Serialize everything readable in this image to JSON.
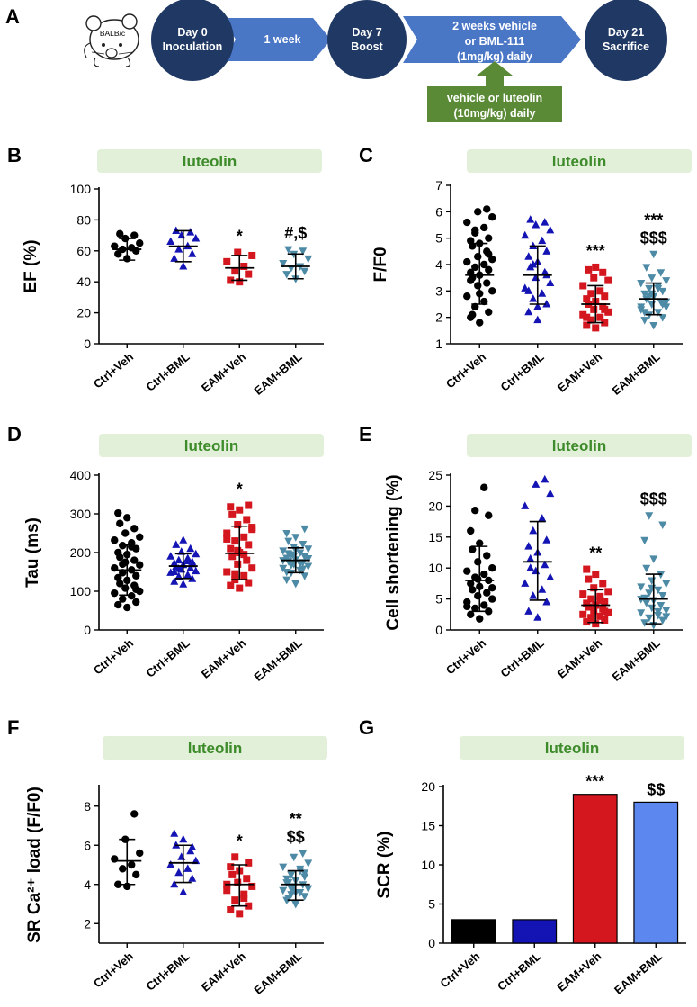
{
  "timeline": {
    "panel_letter": "A",
    "mouse_label": "BALB/c",
    "day0_line1": "Day 0",
    "day0_line2": "Inoculation",
    "arrow1": "1 week",
    "day7_line1": "Day 7",
    "day7_line2": "Boost",
    "arrow2_line1": "2 weeks vehicle",
    "arrow2_line2": "or BML-111",
    "arrow2_line3": "(1mg/kg) daily",
    "day21_line1": "Day 21",
    "day21_line2": "Sacrifice",
    "luteolin_line1": "vehicle or luteolin",
    "luteolin_line2": "(10mg/kg) daily",
    "colors": {
      "circle": "#1f3864",
      "arrow": "#4a76c6",
      "green_box": "#5a8a35"
    }
  },
  "tag_label": "luteolin",
  "chart_data": [
    {
      "panel": "B",
      "type": "scatter",
      "ylabel": "EF (%)",
      "ylim": [
        0,
        100
      ],
      "yticks": [
        0,
        20,
        40,
        60,
        80,
        100
      ],
      "categories": [
        "Ctrl+Veh",
        "Ctrl+BML",
        "EAM+Veh",
        "EAM+BML"
      ],
      "means": [
        61,
        63,
        49,
        50
      ],
      "sd_upper": [
        68,
        73,
        57,
        58
      ],
      "sd_lower": [
        54,
        53,
        41,
        42
      ],
      "significance": [
        "",
        "",
        "*",
        "#,$"
      ],
      "points": [
        [
          55,
          58,
          60,
          61,
          62,
          63,
          65,
          68,
          70,
          71
        ],
        [
          50,
          55,
          58,
          61,
          63,
          66,
          68,
          70,
          72,
          73
        ],
        [
          40,
          41,
          45,
          47,
          50,
          53,
          57,
          59
        ],
        [
          42,
          45,
          47,
          49,
          50,
          52,
          55,
          58,
          60,
          61
        ]
      ]
    },
    {
      "panel": "C",
      "type": "scatter",
      "ylabel": "F/F0",
      "ylim": [
        1,
        7
      ],
      "yticks": [
        1,
        2,
        3,
        4,
        5,
        6,
        7
      ],
      "categories": [
        "Ctrl+Veh",
        "Ctrl+BML",
        "EAM+Veh",
        "EAM+BML"
      ],
      "means": [
        3.6,
        3.6,
        2.5,
        2.7
      ],
      "sd_upper": [
        4.8,
        4.7,
        3.2,
        3.3
      ],
      "sd_lower": [
        2.5,
        2.5,
        1.8,
        2.1
      ],
      "significance": [
        "",
        "",
        "***",
        "***|$$$"
      ],
      "points": [
        [
          1.8,
          2.0,
          2.2,
          2.4,
          2.6,
          2.8,
          3.0,
          3.2,
          3.3,
          3.5,
          3.6,
          3.7,
          3.8,
          3.9,
          4.0,
          4.1,
          4.2,
          4.3,
          4.5,
          4.7,
          4.8,
          4.9,
          5.0,
          5.2,
          5.4,
          5.6,
          5.8,
          6.0,
          6.1,
          2.1,
          2.9,
          3.4,
          4.4,
          5.3
        ],
        [
          1.9,
          2.2,
          2.5,
          2.7,
          2.9,
          3.1,
          3.3,
          3.5,
          3.7,
          3.9,
          4.1,
          4.3,
          4.5,
          4.7,
          4.9,
          5.1,
          5.3,
          5.5,
          5.6,
          5.7,
          2.4,
          3.0,
          3.6,
          4.0
        ],
        [
          1.6,
          1.7,
          1.8,
          1.9,
          2.0,
          2.1,
          2.2,
          2.3,
          2.4,
          2.5,
          2.6,
          2.7,
          2.8,
          2.9,
          3.0,
          3.2,
          3.4,
          3.5,
          3.7,
          3.8,
          3.9,
          2.0,
          2.3
        ],
        [
          1.7,
          1.9,
          2.0,
          2.1,
          2.2,
          2.3,
          2.4,
          2.5,
          2.6,
          2.7,
          2.8,
          2.9,
          3.0,
          3.1,
          3.2,
          3.3,
          3.4,
          3.5,
          3.7,
          3.9,
          4.4,
          2.2,
          2.5,
          2.8,
          3.1,
          2.4,
          2.6,
          2.9
        ]
      ]
    },
    {
      "panel": "D",
      "type": "scatter",
      "ylabel": "Tau (ms)",
      "ylim": [
        0,
        400
      ],
      "yticks": [
        0,
        100,
        200,
        300,
        400
      ],
      "categories": [
        "Ctrl+Veh",
        "Ctrl+BML",
        "EAM+Veh",
        "EAM+BML"
      ],
      "means": [
        155,
        165,
        198,
        180
      ],
      "sd_upper": [
        220,
        197,
        268,
        212
      ],
      "sd_lower": [
        90,
        133,
        130,
        148
      ],
      "significance": [
        "",
        "",
        "*",
        ""
      ],
      "points": [
        [
          58,
          65,
          72,
          80,
          88,
          95,
          100,
          108,
          115,
          120,
          128,
          135,
          140,
          148,
          155,
          160,
          168,
          175,
          180,
          188,
          195,
          200,
          210,
          218,
          225,
          232,
          240,
          250,
          262,
          275,
          290,
          302,
          105,
          170,
          215
        ],
        [
          118,
          125,
          132,
          138,
          142,
          148,
          152,
          156,
          160,
          164,
          168,
          172,
          176,
          180,
          185,
          190,
          196,
          202,
          210,
          220,
          232,
          150,
          170,
          158,
          178
        ],
        [
          108,
          115,
          122,
          130,
          140,
          150,
          160,
          170,
          180,
          190,
          200,
          210,
          220,
          230,
          240,
          250,
          260,
          272,
          285,
          298,
          310,
          318,
          322,
          145,
          195,
          235,
          265,
          205
        ],
        [
          120,
          130,
          140,
          148,
          155,
          160,
          165,
          170,
          175,
          178,
          182,
          186,
          190,
          195,
          200,
          205,
          210,
          215,
          222,
          230,
          240,
          250,
          262,
          168,
          172,
          180,
          185,
          192,
          158,
          198,
          208,
          150
        ]
      ]
    },
    {
      "panel": "E",
      "type": "scatter",
      "ylabel": "Cell shortening (%)",
      "ylim": [
        0,
        25
      ],
      "yticks": [
        0,
        5,
        10,
        15,
        20,
        25
      ],
      "categories": [
        "Ctrl+Veh",
        "Ctrl+BML",
        "EAM+Veh",
        "EAM+BML"
      ],
      "means": [
        8,
        11,
        4,
        5
      ],
      "sd_upper": [
        13.5,
        17.5,
        6.5,
        9
      ],
      "sd_lower": [
        3,
        4.8,
        1.2,
        1
      ],
      "significance": [
        "",
        "",
        "**",
        "$$$"
      ],
      "points": [
        [
          1.8,
          2.5,
          3.0,
          3.5,
          4.0,
          4.5,
          5.0,
          5.5,
          6.0,
          6.5,
          7.0,
          7.5,
          8.0,
          8.5,
          9.0,
          9.5,
          10.0,
          11.0,
          12.0,
          13.0,
          14.0,
          16.0,
          18.5,
          19.3,
          23.0,
          3.8,
          6.8,
          8.2
        ],
        [
          2.0,
          3.0,
          4.5,
          5.5,
          6.5,
          7.5,
          8.5,
          9.5,
          10.5,
          11.5,
          12.5,
          13.5,
          14.5,
          16.0,
          18.0,
          20.0,
          22.0,
          23.5,
          24.3,
          10.0
        ],
        [
          1.0,
          1.3,
          1.6,
          1.9,
          2.2,
          2.5,
          2.8,
          3.1,
          3.4,
          3.7,
          4.0,
          4.3,
          4.6,
          5.0,
          5.4,
          5.8,
          6.2,
          6.8,
          7.5,
          8.2,
          9.0,
          9.8,
          3.0,
          2.0,
          4.8
        ],
        [
          0.8,
          1.2,
          1.6,
          2.0,
          2.4,
          2.8,
          3.2,
          3.6,
          4.0,
          4.4,
          4.8,
          5.2,
          5.6,
          6.0,
          6.5,
          7.0,
          7.5,
          8.0,
          9.0,
          10.0,
          11.5,
          14.5,
          17.0,
          18.5,
          3.0,
          5.0,
          2.2,
          6.8
        ]
      ]
    },
    {
      "panel": "F",
      "type": "scatter",
      "ylabel": "SR Ca²⁺ load (F/F0)",
      "ylim": [
        1,
        9
      ],
      "yticks": [
        2,
        4,
        6,
        8
      ],
      "categories": [
        "Ctrl+Veh",
        "Ctrl+BML",
        "EAM+Veh",
        "EAM+BML"
      ],
      "means": [
        5.2,
        5.1,
        4.0,
        4.0
      ],
      "sd_upper": [
        6.3,
        6.0,
        5.0,
        4.7
      ],
      "sd_lower": [
        4.0,
        4.1,
        2.9,
        3.2
      ],
      "significance": [
        "",
        "",
        "*",
        "**|$$"
      ],
      "points": [
        [
          3.9,
          4.0,
          4.5,
          4.8,
          5.0,
          5.3,
          5.6,
          6.3,
          7.6
        ],
        [
          3.6,
          4.0,
          4.3,
          4.6,
          4.8,
          5.0,
          5.2,
          5.4,
          5.7,
          6.0,
          6.3,
          6.6,
          5.9
        ],
        [
          2.5,
          2.7,
          2.9,
          3.2,
          3.5,
          3.7,
          3.9,
          4.1,
          4.3,
          4.5,
          4.7,
          4.9,
          5.1,
          5.4,
          3.3,
          4.0
        ],
        [
          3.0,
          3.2,
          3.4,
          3.5,
          3.6,
          3.7,
          3.8,
          3.9,
          4.0,
          4.1,
          4.2,
          4.3,
          4.4,
          4.5,
          4.7,
          4.9,
          5.1,
          5.4,
          5.6,
          3.3,
          3.6,
          4.1,
          4.6,
          3.8,
          4.8
        ]
      ]
    },
    {
      "panel": "G",
      "type": "bar",
      "ylabel": "SCR (%)",
      "ylim": [
        0,
        20
      ],
      "yticks": [
        0,
        5,
        10,
        15,
        20
      ],
      "categories": [
        "Ctrl+Veh",
        "Ctrl+BML",
        "EAM+Veh",
        "EAM+BML"
      ],
      "values": [
        3,
        3,
        19,
        18
      ],
      "colors": [
        "#000000",
        "#1414b4",
        "#d4161f",
        "#5b87ef"
      ],
      "significance": [
        "",
        "",
        "***",
        "$$"
      ]
    }
  ]
}
